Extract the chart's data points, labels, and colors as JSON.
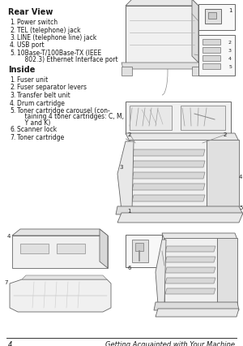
{
  "bg_color": "#ffffff",
  "text_color": "#1a1a1a",
  "rear_view_title": "Rear View",
  "inside_title": "Inside",
  "rear_items": [
    [
      "1.",
      "Power switch"
    ],
    [
      "2.",
      "TEL (telephone) jack"
    ],
    [
      "3.",
      "LINE (telephone line) jack"
    ],
    [
      "4.",
      "USB port"
    ],
    [
      "5.",
      "10Base-T/100Base-TX (IEEE\n    802.3) Ethernet Interface port"
    ]
  ],
  "inside_items": [
    [
      "1.",
      "Fuser unit"
    ],
    [
      "2.",
      "Fuser separator levers"
    ],
    [
      "3.",
      "Transfer belt unit"
    ],
    [
      "4.",
      "Drum cartridge"
    ],
    [
      "5.",
      "Toner cartridge carousel (con-\n    taining 4 toner cartridges: C, M,\n    Y and K)"
    ],
    [
      "6.",
      "Scanner lock"
    ],
    [
      "7.",
      "Toner cartridge"
    ]
  ],
  "footer_num": "4",
  "footer_text": "Getting Acquainted with Your Machine",
  "title_fs": 7.0,
  "body_fs": 5.5,
  "footer_fs": 6.0
}
